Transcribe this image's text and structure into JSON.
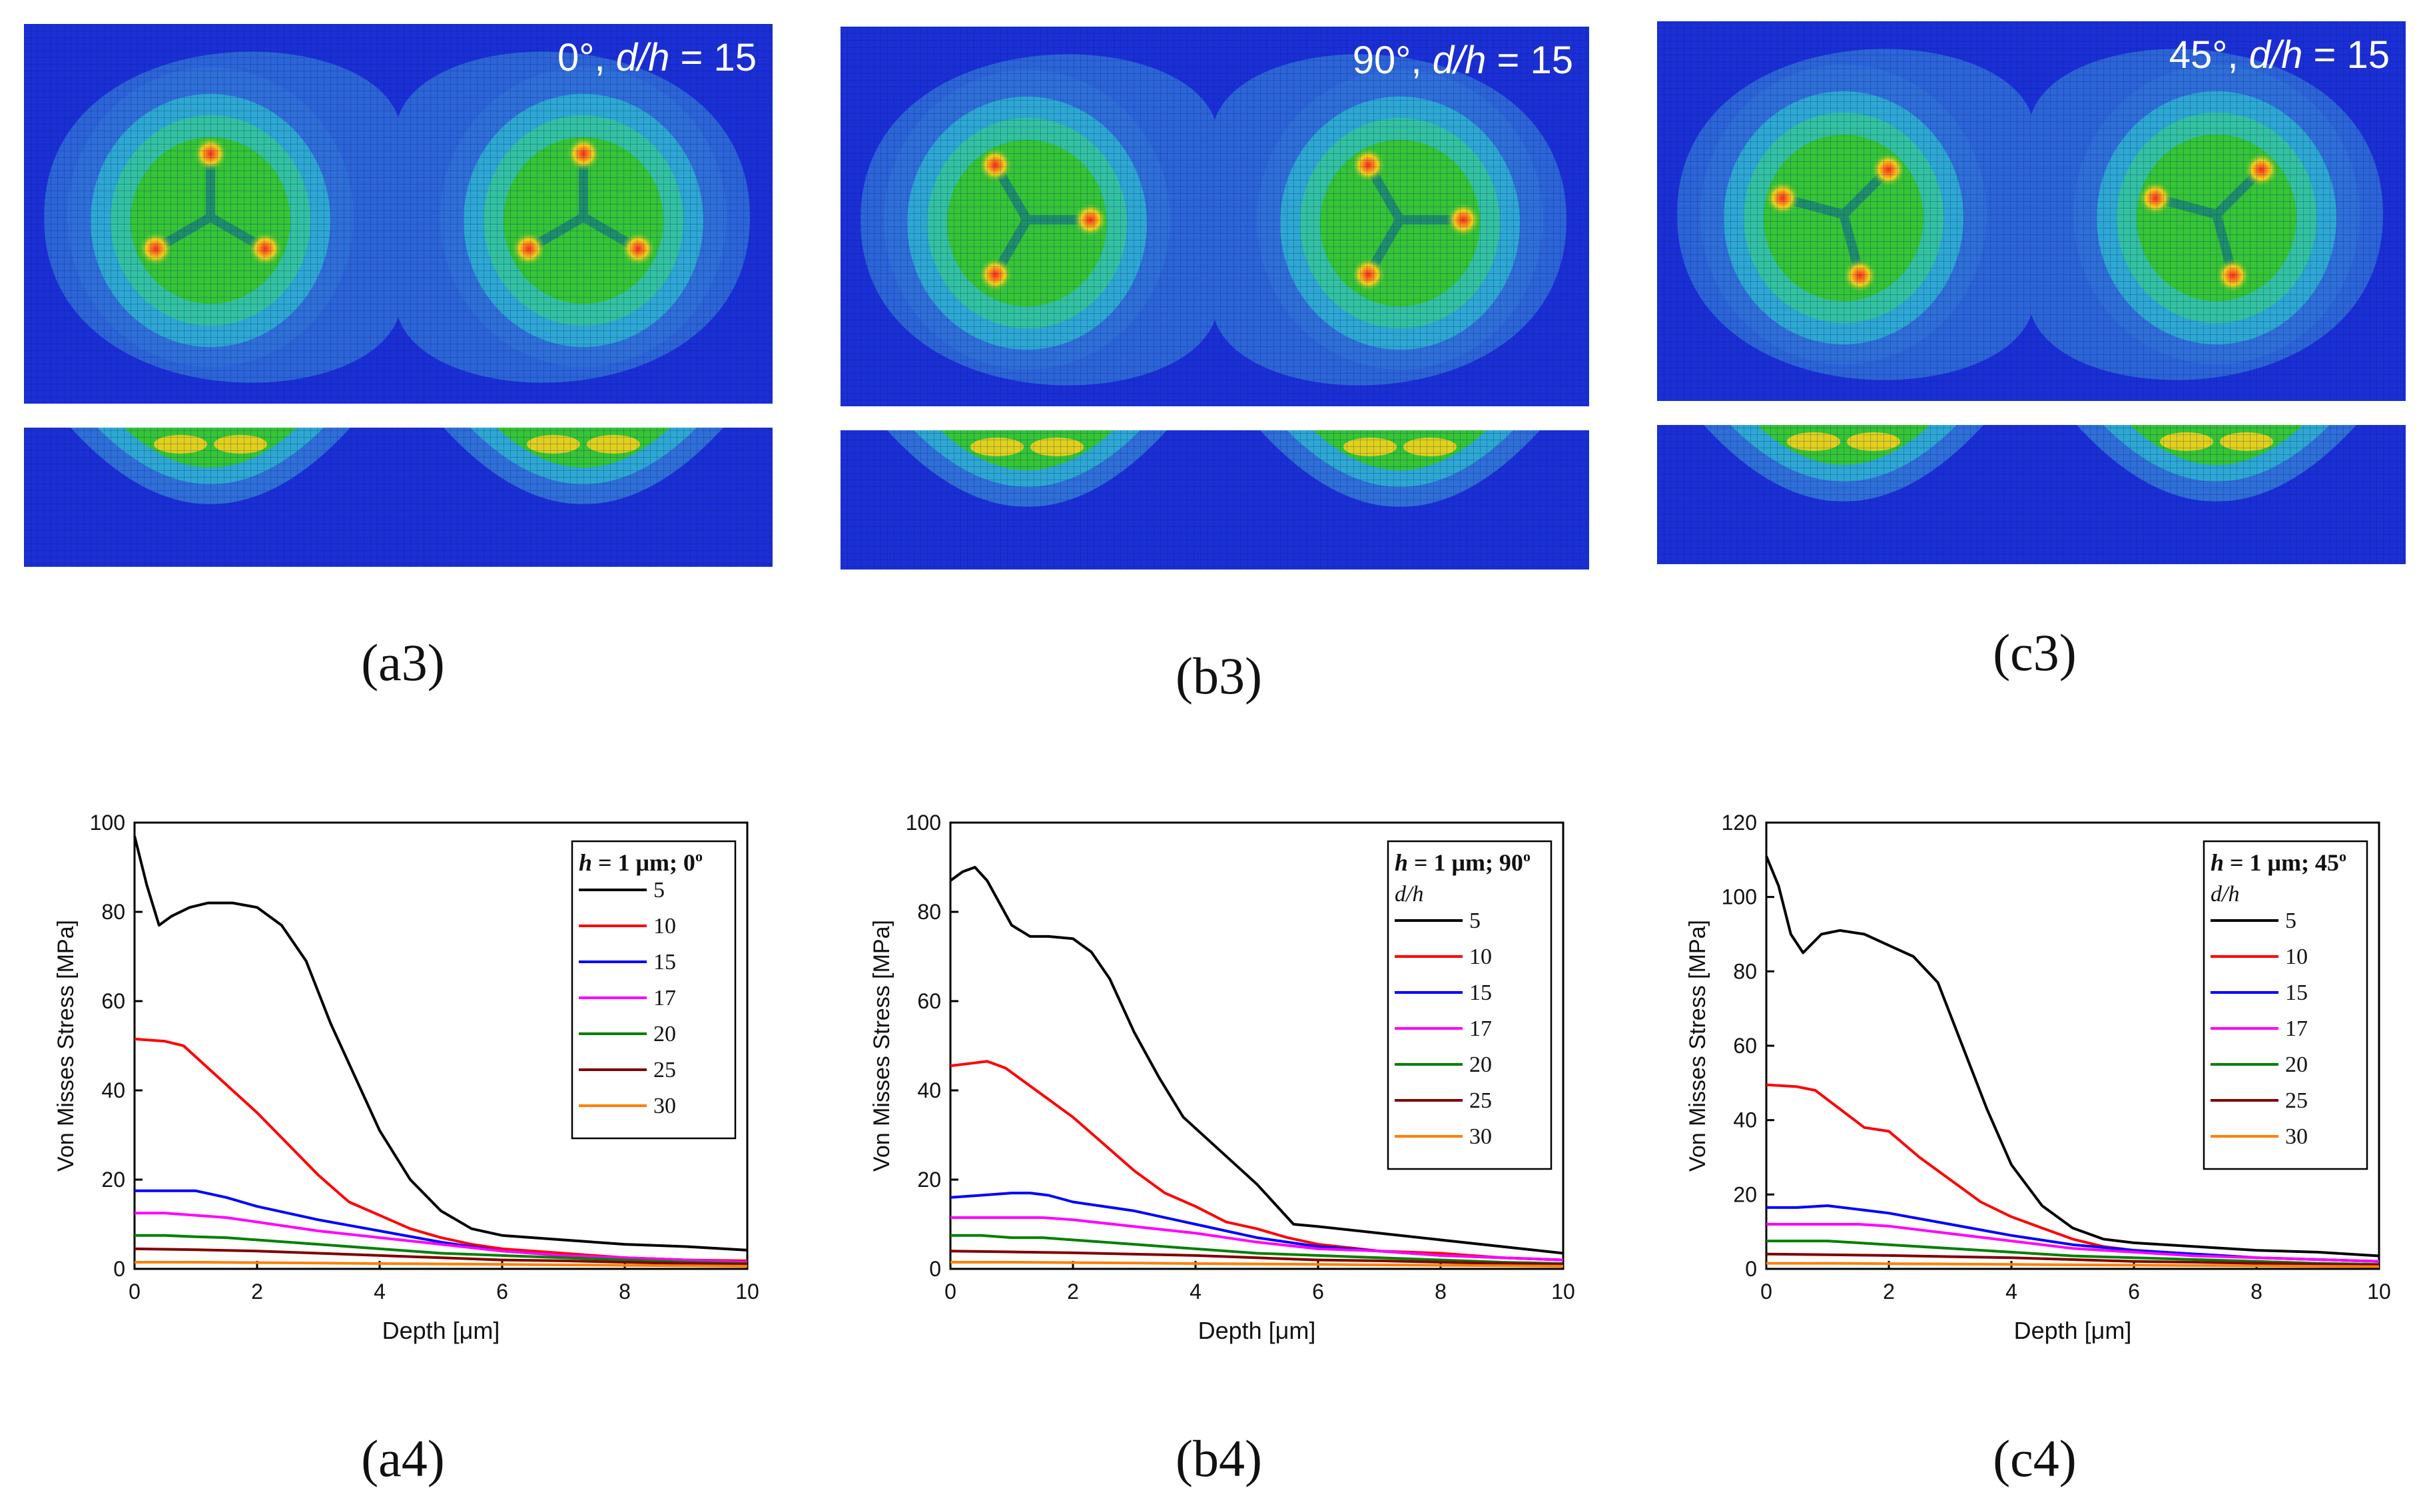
{
  "fem_panels": [
    {
      "id": "a3",
      "label": "0°, d/h = 15",
      "angle_text": "0°, ",
      "dh_text": "d/h",
      "eq_text": " = 15",
      "caption": "(a3)",
      "rotation": 0
    },
    {
      "id": "b3",
      "label": "90°, d/h = 15",
      "angle_text": "90°, ",
      "dh_text": "d/h",
      "eq_text": " = 15",
      "caption": "(b3)",
      "rotation": 90
    },
    {
      "id": "c3",
      "label": "45°, d/h = 15",
      "angle_text": "45°, ",
      "dh_text": "d/h",
      "eq_text": " = 15",
      "caption": "(c3)",
      "rotation": 45
    }
  ],
  "colors": {
    "fem_background": "#1b2fd6",
    "contour_outer": "#2f6fd8",
    "contour_mid": "#2ea8d2",
    "contour_inner": "#33c2a0",
    "contour_core": "#35c535",
    "hotspot": "#ff2a1a",
    "hotspot_ring": "#f5d21a",
    "series": {
      "5": "#000000",
      "10": "#ff0000",
      "15": "#0000ff",
      "17": "#ff00ff",
      "20": "#008000",
      "25": "#800000",
      "30": "#ff8000"
    }
  },
  "chart_data": [
    {
      "id": "a4",
      "type": "line",
      "caption": "(a4)",
      "legend_title": "h = 1 μm; 0°",
      "legend_title_h": "h",
      "legend_title_rest": " = 1 μm; 0",
      "legend_title_sup": "o",
      "legend_subtitle": "",
      "xlabel": "Depth [μm]",
      "ylabel": "Von Misses Stress [MPa]",
      "xlim": [
        0,
        10
      ],
      "ylim": [
        0,
        100
      ],
      "xticks": [
        "0",
        "2",
        "4",
        "6",
        "8",
        "10"
      ],
      "yticks": [
        "0",
        "20",
        "40",
        "60",
        "80",
        "100"
      ],
      "series": [
        {
          "name": "5",
          "color": "#000000",
          "x": [
            0,
            0.2,
            0.4,
            0.6,
            0.9,
            1.2,
            1.6,
            2.0,
            2.4,
            2.8,
            3.2,
            3.6,
            4.0,
            4.5,
            5.0,
            5.5,
            6.0,
            7.0,
            8.0,
            9.0,
            10.0
          ],
          "y": [
            97,
            86,
            77,
            79,
            81,
            82,
            82,
            81,
            77,
            69,
            55,
            43,
            31,
            20,
            13,
            9,
            7.5,
            6.5,
            5.5,
            5,
            4.2
          ]
        },
        {
          "name": "10",
          "color": "#ff0000",
          "x": [
            0,
            0.5,
            0.8,
            1.2,
            1.6,
            2.0,
            2.5,
            3.0,
            3.5,
            4.0,
            4.5,
            5.0,
            5.5,
            6.0,
            7.0,
            8.0,
            9.0,
            10.0
          ],
          "y": [
            51.5,
            51,
            50,
            45,
            40,
            35,
            28,
            21,
            15,
            12,
            9,
            7,
            5.5,
            4.5,
            3.5,
            2.5,
            2,
            1.8
          ]
        },
        {
          "name": "15",
          "color": "#0000ff",
          "x": [
            0,
            0.5,
            1.0,
            1.5,
            2.0,
            3.0,
            4.0,
            5.0,
            6.0,
            7.0,
            8.0,
            9.0,
            10.0
          ],
          "y": [
            17.5,
            17.5,
            17.5,
            16,
            14,
            11,
            8.5,
            6,
            4,
            3,
            2.5,
            2,
            1.5
          ]
        },
        {
          "name": "17",
          "color": "#ff00ff",
          "x": [
            0,
            0.5,
            1.0,
            1.5,
            2.0,
            3.0,
            4.0,
            5.0,
            6.0,
            7.0,
            8.0,
            9.0,
            10.0
          ],
          "y": [
            12.5,
            12.5,
            12,
            11.5,
            10.5,
            8.5,
            7,
            5.5,
            4,
            3,
            2.5,
            2,
            1.5
          ]
        },
        {
          "name": "20",
          "color": "#008000",
          "x": [
            0,
            0.5,
            1.0,
            1.5,
            2.0,
            3.0,
            4.0,
            5.0,
            6.0,
            7.0,
            8.0,
            9.0,
            10.0
          ],
          "y": [
            7.5,
            7.5,
            7.2,
            7,
            6.5,
            5.5,
            4.5,
            3.5,
            3,
            2.5,
            2,
            1.5,
            1.2
          ]
        },
        {
          "name": "25",
          "color": "#800000",
          "x": [
            0,
            1,
            2,
            3,
            4,
            5,
            6,
            7,
            8,
            9,
            10
          ],
          "y": [
            4.5,
            4.3,
            4,
            3.5,
            3,
            2.5,
            2,
            1.8,
            1.5,
            1.2,
            1
          ]
        },
        {
          "name": "30",
          "color": "#ff8000",
          "x": [
            0,
            1,
            2,
            3,
            4,
            5,
            6,
            7,
            8,
            9,
            10
          ],
          "y": [
            1.5,
            1.5,
            1.4,
            1.3,
            1.2,
            1.1,
            1,
            0.9,
            0.8,
            0.7,
            0.6
          ]
        }
      ]
    },
    {
      "id": "b4",
      "type": "line",
      "caption": "(b4)",
      "legend_title": "h = 1 μm; 90°",
      "legend_title_h": "h",
      "legend_title_rest": " = 1 μm; 90",
      "legend_title_sup": "o",
      "legend_subtitle": "d/h",
      "xlabel": "Depth [μm]",
      "ylabel": "Von Misses Stress [MPa]",
      "xlim": [
        0,
        10
      ],
      "ylim": [
        0,
        100
      ],
      "xticks": [
        "0",
        "2",
        "4",
        "6",
        "8",
        "10"
      ],
      "yticks": [
        "0",
        "20",
        "40",
        "60",
        "80",
        "100"
      ],
      "series": [
        {
          "name": "5",
          "color": "#000000",
          "x": [
            0,
            0.2,
            0.4,
            0.6,
            0.8,
            1.0,
            1.3,
            1.6,
            2.0,
            2.3,
            2.6,
            3.0,
            3.4,
            3.8,
            4.2,
            4.6,
            5.0,
            5.6,
            6.0,
            7.0,
            8.0,
            9.0,
            10.0
          ],
          "y": [
            87,
            89,
            90,
            87,
            82,
            77,
            74.5,
            74.5,
            74,
            71,
            65,
            53,
            43,
            34,
            29,
            24,
            19,
            10,
            9.5,
            8,
            6.5,
            5,
            3.5
          ]
        },
        {
          "name": "10",
          "color": "#ff0000",
          "x": [
            0,
            0.3,
            0.6,
            0.9,
            1.2,
            1.6,
            2.0,
            2.5,
            3.0,
            3.5,
            4.0,
            4.5,
            5.0,
            5.5,
            6.0,
            7.0,
            8.0,
            9.0,
            10.0
          ],
          "y": [
            45.5,
            46,
            46.5,
            45,
            42,
            38,
            34,
            28,
            22,
            17,
            14,
            10.5,
            9,
            7,
            5.5,
            4,
            3.5,
            2.5,
            2
          ]
        },
        {
          "name": "15",
          "color": "#0000ff",
          "x": [
            0,
            0.5,
            1.0,
            1.3,
            1.6,
            2.0,
            3.0,
            4.0,
            5.0,
            6.0,
            7.0,
            8.0,
            9.0,
            10.0
          ],
          "y": [
            16,
            16.5,
            17,
            17,
            16.5,
            15,
            13,
            10,
            7,
            5,
            4,
            3,
            2.5,
            2
          ]
        },
        {
          "name": "17",
          "color": "#ff00ff",
          "x": [
            0,
            0.5,
            1.0,
            1.5,
            2.0,
            3.0,
            4.0,
            5.0,
            6.0,
            7.0,
            8.0,
            9.0,
            10.0
          ],
          "y": [
            11.5,
            11.5,
            11.5,
            11.5,
            11,
            9.5,
            8,
            6,
            4.5,
            4,
            3,
            2.5,
            2
          ]
        },
        {
          "name": "20",
          "color": "#008000",
          "x": [
            0,
            0.5,
            1.0,
            1.5,
            2.0,
            3.0,
            4.0,
            5.0,
            6.0,
            7.0,
            8.0,
            9.0,
            10.0
          ],
          "y": [
            7.5,
            7.5,
            7,
            7,
            6.5,
            5.5,
            4.5,
            3.5,
            3,
            2.5,
            2,
            1.5,
            1.2
          ]
        },
        {
          "name": "25",
          "color": "#800000",
          "x": [
            0,
            1,
            2,
            3,
            4,
            5,
            6,
            7,
            8,
            9,
            10
          ],
          "y": [
            4,
            3.8,
            3.6,
            3.3,
            3,
            2.5,
            2,
            1.8,
            1.5,
            1.2,
            1
          ]
        },
        {
          "name": "30",
          "color": "#ff8000",
          "x": [
            0,
            1,
            2,
            3,
            4,
            5,
            6,
            7,
            8,
            9,
            10
          ],
          "y": [
            1.5,
            1.5,
            1.4,
            1.3,
            1.2,
            1.1,
            1,
            0.9,
            0.8,
            0.7,
            0.6
          ]
        }
      ]
    },
    {
      "id": "c4",
      "type": "line",
      "caption": "(c4)",
      "legend_title": "h = 1 μm; 45°",
      "legend_title_h": "h",
      "legend_title_rest": " = 1 μm; 45",
      "legend_title_sup": "o",
      "legend_subtitle": "d/h",
      "xlabel": "Depth [μm]",
      "ylabel": "Von Misses Stress [MPa]",
      "xlim": [
        0,
        10
      ],
      "ylim": [
        0,
        120
      ],
      "xticks": [
        "0",
        "2",
        "4",
        "6",
        "8",
        "10"
      ],
      "yticks": [
        "0",
        "20",
        "40",
        "60",
        "80",
        "100",
        "120"
      ],
      "series": [
        {
          "name": "5",
          "color": "#000000",
          "x": [
            0,
            0.2,
            0.4,
            0.6,
            0.9,
            1.2,
            1.6,
            2.0,
            2.4,
            2.8,
            3.2,
            3.6,
            4.0,
            4.5,
            5.0,
            5.5,
            6.0,
            7.0,
            8.0,
            9.0,
            10.0
          ],
          "y": [
            111,
            103,
            90,
            85,
            90,
            91,
            90,
            87,
            84,
            77,
            60,
            43,
            28,
            17,
            11,
            8,
            7,
            6,
            5,
            4.5,
            3.5
          ]
        },
        {
          "name": "10",
          "color": "#ff0000",
          "x": [
            0,
            0.5,
            0.8,
            1.2,
            1.6,
            2.0,
            2.5,
            3.0,
            3.5,
            4.0,
            4.5,
            5.0,
            5.5,
            6.0,
            7.0,
            8.0,
            9.0,
            10.0
          ],
          "y": [
            49.5,
            49,
            48,
            43,
            38,
            37,
            30,
            24,
            18,
            14,
            11,
            8,
            6,
            5,
            4,
            3,
            2.5,
            2
          ]
        },
        {
          "name": "15",
          "color": "#0000ff",
          "x": [
            0,
            0.5,
            1.0,
            1.5,
            2.0,
            3.0,
            4.0,
            5.0,
            6.0,
            7.0,
            8.0,
            9.0,
            10.0
          ],
          "y": [
            16.5,
            16.5,
            17,
            16,
            15,
            12,
            9,
            6.5,
            5,
            4,
            3,
            2.5,
            2
          ]
        },
        {
          "name": "17",
          "color": "#ff00ff",
          "x": [
            0,
            0.5,
            1.0,
            1.5,
            2.0,
            3.0,
            4.0,
            5.0,
            6.0,
            7.0,
            8.0,
            9.0,
            10.0
          ],
          "y": [
            12,
            12,
            12,
            12,
            11.5,
            9.5,
            7.5,
            5.5,
            4.5,
            3.5,
            3,
            2.5,
            2
          ]
        },
        {
          "name": "20",
          "color": "#008000",
          "x": [
            0,
            0.5,
            1.0,
            1.5,
            2.0,
            3.0,
            4.0,
            5.0,
            6.0,
            7.0,
            8.0,
            9.0,
            10.0
          ],
          "y": [
            7.5,
            7.5,
            7.5,
            7,
            6.5,
            5.5,
            4.5,
            3.5,
            3,
            2.5,
            2,
            1.5,
            1.2
          ]
        },
        {
          "name": "25",
          "color": "#800000",
          "x": [
            0,
            1,
            2,
            3,
            4,
            5,
            6,
            7,
            8,
            9,
            10
          ],
          "y": [
            4,
            3.8,
            3.6,
            3.3,
            3,
            2.5,
            2,
            1.8,
            1.5,
            1.2,
            1
          ]
        },
        {
          "name": "30",
          "color": "#ff8000",
          "x": [
            0,
            1,
            2,
            3,
            4,
            5,
            6,
            7,
            8,
            9,
            10
          ],
          "y": [
            1.5,
            1.5,
            1.4,
            1.3,
            1.2,
            1.1,
            1,
            0.9,
            0.8,
            0.7,
            0.6
          ]
        }
      ]
    }
  ]
}
